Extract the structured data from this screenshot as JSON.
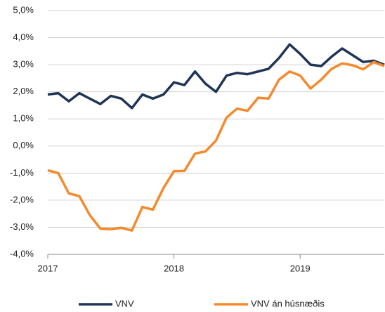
{
  "chart_data": {
    "type": "line",
    "x": [
      2017,
      2017.083,
      2017.167,
      2017.25,
      2017.333,
      2017.417,
      2017.5,
      2017.583,
      2017.667,
      2017.75,
      2017.833,
      2017.917,
      2018,
      2018.083,
      2018.167,
      2018.25,
      2018.333,
      2018.417,
      2018.5,
      2018.583,
      2018.667,
      2018.75,
      2018.833,
      2018.917,
      2019,
      2019.083,
      2019.167,
      2019.25,
      2019.333,
      2019.417,
      2019.5,
      2019.583,
      2019.667
    ],
    "series": [
      {
        "name": "VNV",
        "color": "#1f3556",
        "values": [
          1.9,
          1.95,
          1.65,
          1.95,
          1.75,
          1.55,
          1.85,
          1.75,
          1.4,
          1.9,
          1.75,
          1.9,
          2.35,
          2.25,
          2.75,
          2.3,
          2.0,
          2.6,
          2.7,
          2.65,
          2.75,
          2.85,
          3.25,
          3.75,
          3.4,
          3.0,
          2.95,
          3.3,
          3.6,
          3.35,
          3.1,
          3.15,
          3.0
        ]
      },
      {
        "name": "VNV án húsnæðis",
        "color": "#f58a2d",
        "values": [
          -0.9,
          -1.0,
          -1.75,
          -1.85,
          -2.55,
          -3.05,
          -3.07,
          -3.02,
          -3.12,
          -2.25,
          -2.35,
          -1.55,
          -0.93,
          -0.92,
          -0.28,
          -0.2,
          0.2,
          1.05,
          1.38,
          1.3,
          1.78,
          1.75,
          2.45,
          2.75,
          2.6,
          2.12,
          2.45,
          2.85,
          3.05,
          2.98,
          2.83,
          3.1,
          2.95
        ]
      }
    ],
    "xlim": [
      2017,
      2019.667
    ],
    "xticks": [
      2017,
      2018,
      2019
    ],
    "ylim": [
      -4,
      5
    ],
    "yticks": [
      {
        "value": -4,
        "label": "-4,0%"
      },
      {
        "value": -3,
        "label": "-3,0%"
      },
      {
        "value": -2,
        "label": "-2,0%"
      },
      {
        "value": -1,
        "label": "-1,0%"
      },
      {
        "value": 0,
        "label": "0,0%"
      },
      {
        "value": 1,
        "label": "1,0%"
      },
      {
        "value": 2,
        "label": "2,0%"
      },
      {
        "value": 3,
        "label": "3,0%"
      },
      {
        "value": 4,
        "label": "4,0%"
      },
      {
        "value": 5,
        "label": "5,0%"
      }
    ],
    "grid": true
  }
}
